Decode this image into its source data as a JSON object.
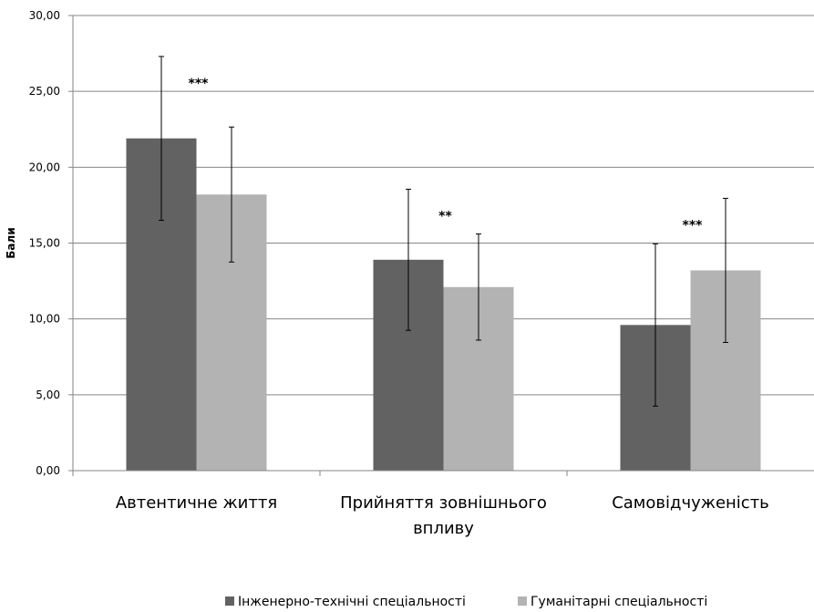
{
  "chart_data": {
    "type": "bar",
    "title": "",
    "xlabel": "",
    "ylabel": "Бали",
    "ylim": [
      0,
      30
    ],
    "yticks": [
      "0,00",
      "5,00",
      "10,00",
      "15,00",
      "20,00",
      "25,00",
      "30,00"
    ],
    "grid": true,
    "legend_position": "bottom",
    "categories": [
      [
        "Автентичне життя"
      ],
      [
        "Прийняття зовнішнього",
        "впливу"
      ],
      [
        "Самовідчуженість"
      ]
    ],
    "series": [
      {
        "name": "Інженерно-технічні спеціальності",
        "color": "#626262",
        "values": [
          21.9,
          13.9,
          9.6
        ],
        "errors": [
          5.4,
          4.65,
          5.35
        ]
      },
      {
        "name": "Гуманітарні спеціальності",
        "color": "#b3b3b3",
        "values": [
          18.2,
          12.1,
          13.2
        ],
        "errors": [
          4.45,
          3.5,
          4.75
        ]
      }
    ],
    "annotations": [
      "***",
      "**",
      "***"
    ]
  }
}
